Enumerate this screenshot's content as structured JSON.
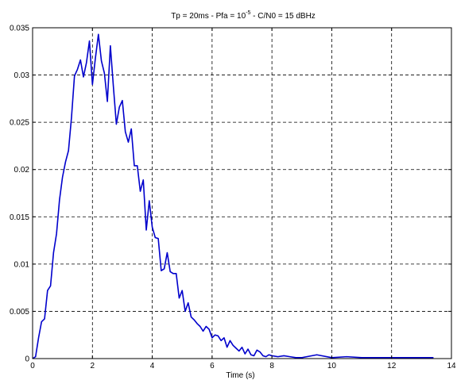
{
  "chart_data": {
    "type": "line",
    "title": {
      "prefix": "Tp = 20ms - Pfa = 10",
      "superscript": "-5",
      "suffix": " - C/N0 = 15 dBHz"
    },
    "xlabel": "Time (s)",
    "ylabel": "",
    "xlim": [
      0,
      14
    ],
    "ylim": [
      0,
      0.035
    ],
    "xticks": [
      0,
      2,
      4,
      6,
      8,
      10,
      12,
      14
    ],
    "yticks": [
      0,
      0.005,
      0.01,
      0.015,
      0.02,
      0.025,
      0.03,
      0.035
    ],
    "grid": true,
    "grid_style": "dashed",
    "line_color": "#0000cc",
    "series": [
      {
        "x": [
          0,
          0.1,
          0.2,
          0.3,
          0.4,
          0.5,
          0.6,
          0.7,
          0.8,
          0.9,
          1.0,
          1.1,
          1.2,
          1.3,
          1.4,
          1.5,
          1.6,
          1.7,
          1.8,
          1.9,
          2.0,
          2.1,
          2.2,
          2.3,
          2.4,
          2.5,
          2.6,
          2.7,
          2.8,
          2.9,
          3.0,
          3.1,
          3.2,
          3.3,
          3.4,
          3.5,
          3.6,
          3.7,
          3.8,
          3.9,
          4.0,
          4.1,
          4.2,
          4.3,
          4.4,
          4.5,
          4.6,
          4.7,
          4.8,
          4.9,
          5.0,
          5.1,
          5.2,
          5.3,
          5.4,
          5.5,
          5.6,
          5.7,
          5.8,
          5.9,
          6.0,
          6.1,
          6.2,
          6.3,
          6.4,
          6.5,
          6.6,
          6.7,
          6.8,
          6.9,
          7.0,
          7.1,
          7.2,
          7.3,
          7.4,
          7.5,
          7.6,
          7.7,
          7.8,
          7.9,
          8.0,
          8.2,
          8.4,
          8.6,
          8.8,
          9.0,
          9.5,
          10,
          10.5,
          11,
          11.5,
          12,
          12.5,
          13,
          13.4
        ],
        "values": [
          0,
          0.0002,
          0.0022,
          0.0039,
          0.0042,
          0.0072,
          0.0077,
          0.0112,
          0.0132,
          0.0168,
          0.0192,
          0.0208,
          0.022,
          0.0255,
          0.0299,
          0.0306,
          0.0316,
          0.0298,
          0.0313,
          0.0336,
          0.029,
          0.0318,
          0.0343,
          0.0315,
          0.0302,
          0.0272,
          0.0331,
          0.0288,
          0.0248,
          0.0266,
          0.0273,
          0.024,
          0.0229,
          0.0243,
          0.0204,
          0.0204,
          0.0177,
          0.0189,
          0.0136,
          0.0167,
          0.0139,
          0.0128,
          0.0127,
          0.0093,
          0.0095,
          0.0112,
          0.0092,
          0.009,
          0.009,
          0.0064,
          0.0072,
          0.005,
          0.0059,
          0.0044,
          0.0041,
          0.0037,
          0.0034,
          0.0029,
          0.0034,
          0.0031,
          0.0022,
          0.0025,
          0.0024,
          0.0019,
          0.0022,
          0.0012,
          0.0019,
          0.0014,
          0.0011,
          0.0008,
          0.0012,
          0.0005,
          0.001,
          0.0004,
          0.0003,
          0.0009,
          0.0007,
          0.0003,
          0.0002,
          0.0004,
          0.0003,
          0.0002,
          0.0003,
          0.0002,
          0.0001,
          0.0001,
          0.0004,
          0.0001,
          0.0002,
          0.0001,
          0.0001,
          0.0001,
          0.0001,
          0.0001,
          0.0001
        ]
      }
    ]
  }
}
